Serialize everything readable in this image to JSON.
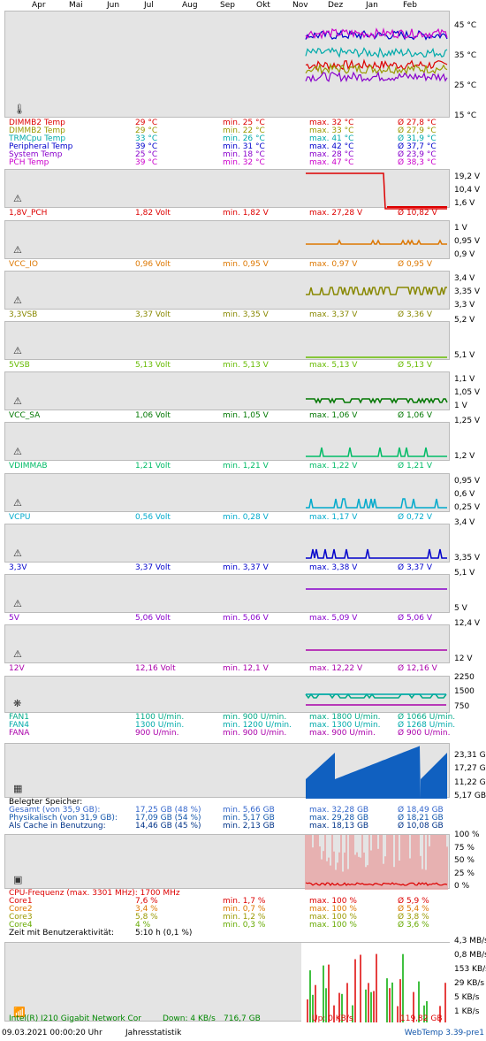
{
  "months": [
    "Apr",
    "Mai",
    "Jun",
    "Jul",
    "Aug",
    "Sep",
    "Okt",
    "Nov",
    "Dez",
    "Jan",
    "Feb"
  ],
  "temp": {
    "yticks": [
      "45 °C",
      "35 °C",
      "25 °C",
      "15 °C"
    ],
    "rows": [
      {
        "name": "DIMMB2 Temp",
        "cur": "29 °C",
        "min": "min. 25 °C",
        "max": "max. 32 °C",
        "avg": "Ø 27,8 °C",
        "color": "#dd0000"
      },
      {
        "name": "DIMMB2 Temp",
        "cur": "29 °C",
        "min": "min. 22 °C",
        "max": "max. 33 °C",
        "avg": "Ø 27,9 °C",
        "color": "#999900"
      },
      {
        "name": "TRMCpu Temp",
        "cur": "33 °C",
        "min": "min. 26 °C",
        "max": "max. 41 °C",
        "avg": "Ø 31,9 °C",
        "color": "#00aaaa"
      },
      {
        "name": "Peripheral Temp",
        "cur": "39 °C",
        "min": "min. 31 °C",
        "max": "max. 42 °C",
        "avg": "Ø 37,7 °C",
        "color": "#0000cc"
      },
      {
        "name": "System Temp",
        "cur": "25 °C",
        "min": "min. 18 °C",
        "max": "max. 28 °C",
        "avg": "Ø 23,9 °C",
        "color": "#8800cc"
      },
      {
        "name": "PCH Temp",
        "cur": "39 °C",
        "min": "min. 32 °C",
        "max": "max. 47 °C",
        "avg": "Ø 38,3 °C",
        "color": "#cc00cc"
      }
    ]
  },
  "volts": [
    {
      "id": "v1",
      "name": "1,8V_PCH",
      "cur": "1,82 Volt",
      "min": "min. 1,82 V",
      "max": "max. 27,28 V",
      "avg": "Ø 10,82 V",
      "color": "#dd0000",
      "yticks": [
        "19,2 V",
        "10,4 V",
        "1,6 V"
      ]
    },
    {
      "id": "v2",
      "name": "VCC_IO",
      "cur": "0,96 Volt",
      "min": "min. 0,95 V",
      "max": "max. 0,97 V",
      "avg": "Ø 0,95 V",
      "color": "#dd7700",
      "yticks": [
        "1 V",
        "0,95 V",
        "0,9 V"
      ]
    },
    {
      "id": "v3",
      "name": "3,3VSB",
      "cur": "3,37 Volt",
      "min": "min. 3,35 V",
      "max": "max. 3,37 V",
      "avg": "Ø 3,36 V",
      "color": "#888800",
      "yticks": [
        "3,4 V",
        "3,35 V",
        "3,3 V"
      ]
    },
    {
      "id": "v4",
      "name": "5VSB",
      "cur": "5,13 Volt",
      "min": "min. 5,13 V",
      "max": "max. 5,13 V",
      "avg": "Ø 5,13 V",
      "color": "#66bb00",
      "yticks": [
        "5,2 V",
        "5,1 V"
      ]
    },
    {
      "id": "v5",
      "name": "VCC_SA",
      "cur": "1,06 Volt",
      "min": "min. 1,05 V",
      "max": "max. 1,06 V",
      "avg": "Ø 1,06 V",
      "color": "#007700",
      "yticks": [
        "1,1 V",
        "1,05 V",
        "1 V"
      ]
    },
    {
      "id": "v6",
      "name": "VDIMMAB",
      "cur": "1,21 Volt",
      "min": "min. 1,21 V",
      "max": "max. 1,22 V",
      "avg": "Ø 1,21 V",
      "color": "#00bb66",
      "yticks": [
        "1,25 V",
        "1,2 V"
      ]
    },
    {
      "id": "v7",
      "name": "VCPU",
      "cur": "0,56 Volt",
      "min": "min. 0,28 V",
      "max": "max. 1,17 V",
      "avg": "Ø 0,72 V",
      "color": "#00aacc",
      "yticks": [
        "0,95 V",
        "0,6 V",
        "0,25 V"
      ]
    },
    {
      "id": "v8",
      "name": "3,3V",
      "cur": "3,37 Volt",
      "min": "min. 3,37 V",
      "max": "max. 3,38 V",
      "avg": "Ø 3,37 V",
      "color": "#0000cc",
      "yticks": [
        "3,4 V",
        "3,35 V"
      ]
    },
    {
      "id": "v9",
      "name": "5V",
      "cur": "5,06 Volt",
      "min": "min. 5,06 V",
      "max": "max. 5,09 V",
      "avg": "Ø 5,06 V",
      "color": "#8800cc",
      "yticks": [
        "5,1 V",
        "5 V"
      ]
    },
    {
      "id": "v10",
      "name": "12V",
      "cur": "12,16 Volt",
      "min": "min. 12,1 V",
      "max": "max. 12,22 V",
      "avg": "Ø 12,16 V",
      "color": "#aa00aa",
      "yticks": [
        "12,4 V",
        "12 V"
      ]
    }
  ],
  "fans": {
    "yticks": [
      "2250",
      "1500",
      "750"
    ],
    "rows": [
      {
        "name": "FAN1",
        "cur": "1100 U/min.",
        "min": "min. 900 U/min.",
        "max": "max. 1800 U/min.",
        "avg": "Ø 1066 U/min.",
        "color": "#00aa88"
      },
      {
        "name": "FAN4",
        "cur": "1300 U/min.",
        "min": "min. 1200 U/min.",
        "max": "max. 1300 U/min.",
        "avg": "Ø 1268 U/min.",
        "color": "#00aaaa"
      },
      {
        "name": "FANA",
        "cur": "900 U/min.",
        "min": "min. 900 U/min.",
        "max": "max. 900 U/min.",
        "avg": "Ø 900 U/min.",
        "color": "#aa00aa"
      }
    ]
  },
  "memory": {
    "yticks": [
      "23,31 GB",
      "17,27 GB",
      "11,22 GB",
      "5,17 GB"
    ],
    "title": "Belegter Speicher:",
    "rows": [
      {
        "name": "Gesamt (von 35,9 GB):",
        "cur": "17,25 GB (48 %)",
        "min": "min. 5,66 GB",
        "max": "max. 32,28 GB",
        "avg": "Ø 18,49 GB",
        "color": "#3366cc"
      },
      {
        "name": "Physikalisch (von 31,9 GB):",
        "cur": "17,09 GB (54 %)",
        "min": "min. 5,17 GB",
        "max": "max. 29,28 GB",
        "avg": "Ø 18,21 GB",
        "color": "#1155aa"
      },
      {
        "name": "Als Cache in Benutzung:",
        "cur": "14,46 GB (45 %)",
        "min": "min. 2,13 GB",
        "max": "max. 18,13 GB",
        "avg": "Ø 10,08 GB",
        "color": "#003388"
      }
    ]
  },
  "cpu": {
    "yticks": [
      "100 %",
      "75 %",
      "50 %",
      "25 %",
      "0 %"
    ],
    "freq": "CPU-Frequenz (max. 3301 MHz): 1700 MHz",
    "rows": [
      {
        "name": "Core1",
        "cur": "7,6 %",
        "min": "min. 1,7 %",
        "max": "max. 100 %",
        "avg": "Ø 5,9 %",
        "color": "#dd0000"
      },
      {
        "name": "Core2",
        "cur": "3,4 %",
        "min": "min. 0,7 %",
        "max": "max. 100 %",
        "avg": "Ø 5,4 %",
        "color": "#dd7700"
      },
      {
        "name": "Core3",
        "cur": "5,8 %",
        "min": "min. 1,2 %",
        "max": "max. 100 %",
        "avg": "Ø 3,8 %",
        "color": "#999900"
      },
      {
        "name": "Core4",
        "cur": "4 %",
        "min": "min. 0,3 %",
        "max": "max. 100 %",
        "avg": "Ø 3,6 %",
        "color": "#66aa00"
      }
    ],
    "activity_label": "Zeit mit Benutzeraktivität:",
    "activity_value": "5:10 h (0,1 %)"
  },
  "network": {
    "yticks": [
      "4,3 MB/s",
      "0,8 MB/s",
      "153 KB/s",
      "29 KB/s",
      "5 KB/s",
      "1 KB/s"
    ],
    "name": "Intel(R) I210 Gigabit Network Cor",
    "down": "Down: 4 KB/s",
    "down_total": "716,7 GB",
    "up": "Up: 0 KB/s",
    "up_total": "119,82 GB"
  },
  "footer": {
    "datetime": "09.03.2021 00:00:20 Uhr",
    "mode": "Jahresstatistik",
    "app": "WebTemp 3.39-pre1"
  },
  "colors": {
    "panel_bg": "#e4e4e4",
    "down": "#00aa00",
    "up": "#dd0000",
    "memory_fill": "#1060c0",
    "cpu_fill": "#e8a0a0"
  }
}
